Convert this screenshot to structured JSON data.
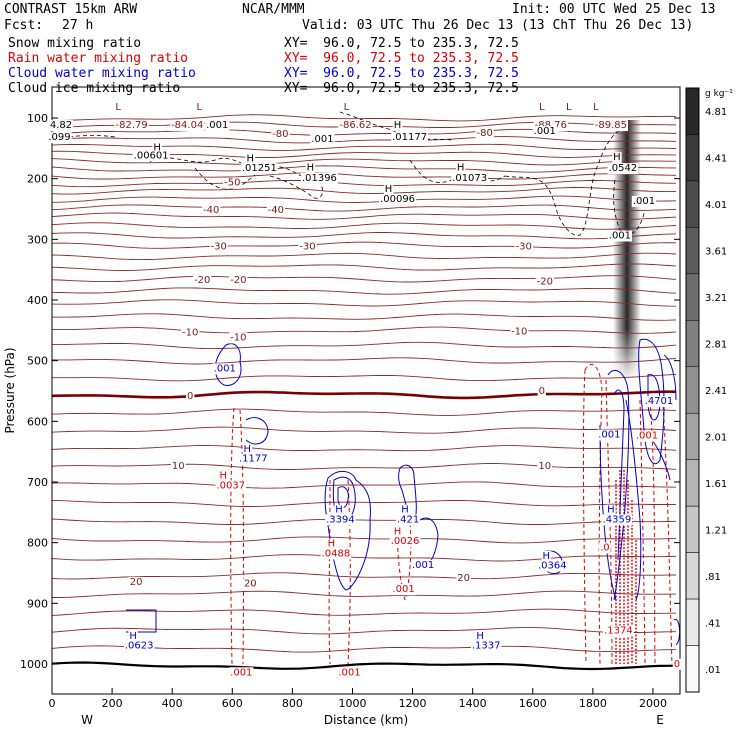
{
  "header": {
    "title": "CONTRAST 15km ARW",
    "center": "NCAR/MMM",
    "init": "Init: 00 UTC Wed 25 Dec 13",
    "fcst_label": "Fcst:",
    "fcst_value": "27 h",
    "valid": "Valid: 03 UTC Thu 26 Dec 13 (13 ChT Thu 26 Dec 13)",
    "fields": [
      {
        "name": "Snow mixing ratio",
        "xy": "XY=  96.0, 72.5 to 235.3, 72.5",
        "color": "#000000"
      },
      {
        "name": "Rain water mixing ratio",
        "xy": "XY=  96.0, 72.5 to 235.3, 72.5",
        "color": "#dd0000"
      },
      {
        "name": "Cloud water mixing ratio",
        "xy": "XY=  96.0, 72.5 to 235.3, 72.5",
        "color": "#0000cc"
      },
      {
        "name": "Cloud ice mixing ratio",
        "xy": "XY=  96.0, 72.5 to 235.3, 72.5",
        "color": "#000000"
      }
    ]
  },
  "chart_data": {
    "type": "contour",
    "xlabel": "Distance (km)",
    "ylabel": "Pressure (hPa)",
    "xlim": [
      0,
      2090
    ],
    "ylim": [
      1050,
      70
    ],
    "x_ticks": [
      "0",
      "200",
      "400",
      "600",
      "800",
      "1000",
      "1200",
      "1400",
      "1600",
      "1800",
      "2000"
    ],
    "y_ticks": [
      "100",
      "200",
      "300",
      "400",
      "500",
      "600",
      "700",
      "800",
      "900",
      "1000"
    ],
    "west_label": "W",
    "east_label": "E",
    "colorbar": {
      "unit": "g kg⁻¹",
      "labels": [
        "4.81",
        "4.41",
        "4.01",
        "3.61",
        "3.21",
        "2.81",
        "2.41",
        "2.01",
        "1.61",
        "1.21",
        ".81",
        ".41",
        ".01"
      ]
    },
    "temperature_labels": [
      {
        "text": "-80",
        "x": 760,
        "p": 125
      },
      {
        "text": "-80",
        "x": 1440,
        "p": 123
      },
      {
        "text": "-50",
        "x": 600,
        "p": 205
      },
      {
        "text": "-40",
        "x": 530,
        "p": 250
      },
      {
        "text": "-40",
        "x": 745,
        "p": 250
      },
      {
        "text": "-30",
        "x": 555,
        "p": 310
      },
      {
        "text": "-30",
        "x": 850,
        "p": 310
      },
      {
        "text": "-30",
        "x": 1570,
        "p": 310
      },
      {
        "text": "-20",
        "x": 500,
        "p": 365
      },
      {
        "text": "-20",
        "x": 620,
        "p": 365
      },
      {
        "text": "-20",
        "x": 1640,
        "p": 368
      },
      {
        "text": "-10",
        "x": 460,
        "p": 452
      },
      {
        "text": "-10",
        "x": 620,
        "p": 460
      },
      {
        "text": "-10",
        "x": 1555,
        "p": 450
      },
      {
        "text": "0",
        "x": 460,
        "p": 557
      },
      {
        "text": "0",
        "x": 1630,
        "p": 548
      },
      {
        "text": "10",
        "x": 420,
        "p": 672
      },
      {
        "text": "10",
        "x": 1640,
        "p": 672
      },
      {
        "text": "20",
        "x": 280,
        "p": 863
      },
      {
        "text": "20",
        "x": 660,
        "p": 866
      },
      {
        "text": "20",
        "x": 1370,
        "p": 857
      }
    ],
    "extrema_labels": [
      {
        "text": "L",
        "x": 220,
        "p": 80
      },
      {
        "text": "L",
        "x": 490,
        "p": 80
      },
      {
        "text": "L",
        "x": 980,
        "p": 80
      },
      {
        "text": "L",
        "x": 1630,
        "p": 80
      },
      {
        "text": "L",
        "x": 1720,
        "p": 80
      },
      {
        "text": "L",
        "x": 1810,
        "p": 80
      },
      {
        "text": "-82.79",
        "x": 265,
        "p": 110
      },
      {
        "text": "-84.04",
        "x": 450,
        "p": 110
      },
      {
        "text": "-86.62",
        "x": 1010,
        "p": 110
      },
      {
        "text": "-88.76",
        "x": 1660,
        "p": 110
      },
      {
        "text": "-89.85",
        "x": 1860,
        "p": 110
      }
    ],
    "max_labels": [
      {
        "text": "4.82",
        "x": 30,
        "p": 110,
        "color": "#000000"
      },
      {
        "text": ".099",
        "x": 25,
        "p": 130,
        "color": "#000000"
      },
      {
        "text": ".001",
        "x": 550,
        "p": 110,
        "color": "#000000"
      },
      {
        "text": ".001",
        "x": 900,
        "p": 133,
        "color": "#000000"
      },
      {
        "text": ".001",
        "x": 1640,
        "p": 120,
        "color": "#000000"
      },
      {
        "text": "H",
        "x": 350,
        "p": 147,
        "color": "#000000"
      },
      {
        "text": ".00601",
        "x": 330,
        "p": 160,
        "color": "#000000"
      },
      {
        "text": "H",
        "x": 660,
        "p": 165,
        "color": "#000000"
      },
      {
        "text": ".01251",
        "x": 690,
        "p": 181,
        "color": "#000000"
      },
      {
        "text": "H",
        "x": 860,
        "p": 180,
        "color": "#000000"
      },
      {
        "text": ".01396",
        "x": 890,
        "p": 197,
        "color": "#000000"
      },
      {
        "text": "H",
        "x": 1150,
        "p": 110,
        "color": "#000000"
      },
      {
        "text": ".01177",
        "x": 1190,
        "p": 130,
        "color": "#000000"
      },
      {
        "text": "H",
        "x": 1360,
        "p": 180,
        "color": "#000000"
      },
      {
        "text": ".01073",
        "x": 1390,
        "p": 197,
        "color": "#000000"
      },
      {
        "text": "H",
        "x": 1120,
        "p": 215,
        "color": "#000000"
      },
      {
        "text": ".00096",
        "x": 1150,
        "p": 232,
        "color": "#000000"
      },
      {
        "text": "H",
        "x": 1880,
        "p": 163,
        "color": "#000000"
      },
      {
        "text": ".0542",
        "x": 1900,
        "p": 181,
        "color": "#000000"
      },
      {
        "text": ".001",
        "x": 1970,
        "p": 235,
        "color": "#000000"
      },
      {
        "text": ".001",
        "x": 1890,
        "p": 292,
        "color": "#000000"
      },
      {
        "text": ".001",
        "x": 575,
        "p": 511,
        "color": "#0000cc"
      },
      {
        "text": "H",
        "x": 650,
        "p": 644,
        "color": "#0000cc"
      },
      {
        "text": ".1177",
        "x": 670,
        "p": 660,
        "color": "#0000cc"
      },
      {
        "text": "H",
        "x": 955,
        "p": 744,
        "color": "#0000cc"
      },
      {
        "text": ".3394",
        "x": 960,
        "p": 760,
        "color": "#0000cc"
      },
      {
        "text": "H",
        "x": 1175,
        "p": 744,
        "color": "#0000cc"
      },
      {
        "text": ".421",
        "x": 1185,
        "p": 760,
        "color": "#0000cc"
      },
      {
        "text": ".001",
        "x": 1235,
        "p": 835,
        "color": "#0000cc"
      },
      {
        "text": "H",
        "x": 1645,
        "p": 820,
        "color": "#0000cc"
      },
      {
        "text": ".0364",
        "x": 1665,
        "p": 836,
        "color": "#0000cc"
      },
      {
        "text": "H",
        "x": 1860,
        "p": 744,
        "color": "#0000cc"
      },
      {
        "text": ".4359",
        "x": 1880,
        "p": 760,
        "color": "#0000cc"
      },
      {
        "text": ".001",
        "x": 1855,
        "p": 620,
        "color": "#0000cc"
      },
      {
        "text": ".4701",
        "x": 2020,
        "p": 565,
        "color": "#0000cc"
      },
      {
        "text": "H",
        "x": 270,
        "p": 952,
        "color": "#0000cc"
      },
      {
        "text": ".0623",
        "x": 290,
        "p": 968,
        "color": "#0000cc"
      },
      {
        "text": "H",
        "x": 1425,
        "p": 952,
        "color": "#0000cc"
      },
      {
        "text": ".1337",
        "x": 1445,
        "p": 968,
        "color": "#0000cc"
      },
      {
        "text": "H",
        "x": 570,
        "p": 688,
        "color": "#dd0000"
      },
      {
        "text": ".0037",
        "x": 595,
        "p": 704,
        "color": "#dd0000"
      },
      {
        "text": "H",
        "x": 930,
        "p": 800,
        "color": "#dd0000"
      },
      {
        "text": ".0488",
        "x": 945,
        "p": 816,
        "color": "#dd0000"
      },
      {
        "text": "H",
        "x": 1150,
        "p": 780,
        "color": "#dd0000"
      },
      {
        "text": ".0026",
        "x": 1175,
        "p": 796,
        "color": "#dd0000"
      },
      {
        "text": ".001",
        "x": 1170,
        "p": 875,
        "color": "#dd0000"
      },
      {
        "text": ".0",
        "x": 1840,
        "p": 806,
        "color": "#dd0000"
      },
      {
        "text": ".1374",
        "x": 1885,
        "p": 943,
        "color": "#dd0000"
      },
      {
        "text": ".001",
        "x": 1980,
        "p": 622,
        "color": "#dd0000"
      },
      {
        "text": ".001",
        "x": 630,
        "p": 1012,
        "color": "#dd0000"
      },
      {
        "text": ".001",
        "x": 990,
        "p": 1012,
        "color": "#dd0000"
      },
      {
        "text": "0",
        "x": 2080,
        "p": 998,
        "color": "#dd0000"
      }
    ]
  }
}
